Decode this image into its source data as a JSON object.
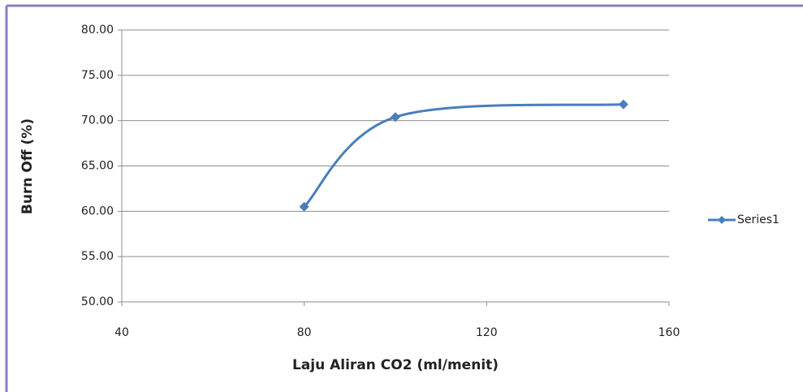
{
  "chart_data": {
    "type": "line",
    "x_label": "Laju Aliran CO2 (ml/menit)",
    "y_label": "Burn Off (%)",
    "x": [
      80,
      100,
      150
    ],
    "series": [
      {
        "name": "Series1",
        "color": "#4a7ebb",
        "values": [
          60.5,
          70.4,
          71.8
        ]
      }
    ],
    "xlim": [
      40,
      160
    ],
    "xticks": [
      40,
      80,
      120,
      160
    ],
    "ylim": [
      50,
      80
    ],
    "yticks": [
      {
        "value": 50,
        "label": "50.00"
      },
      {
        "value": 55,
        "label": "55.00"
      },
      {
        "value": 60,
        "label": "60.00"
      },
      {
        "value": 65,
        "label": "65.00"
      },
      {
        "value": 70,
        "label": "70.00"
      },
      {
        "value": 75,
        "label": "75.00"
      },
      {
        "value": 80,
        "label": "80.00"
      }
    ],
    "grid": true,
    "smooth": true,
    "legend": "right"
  }
}
